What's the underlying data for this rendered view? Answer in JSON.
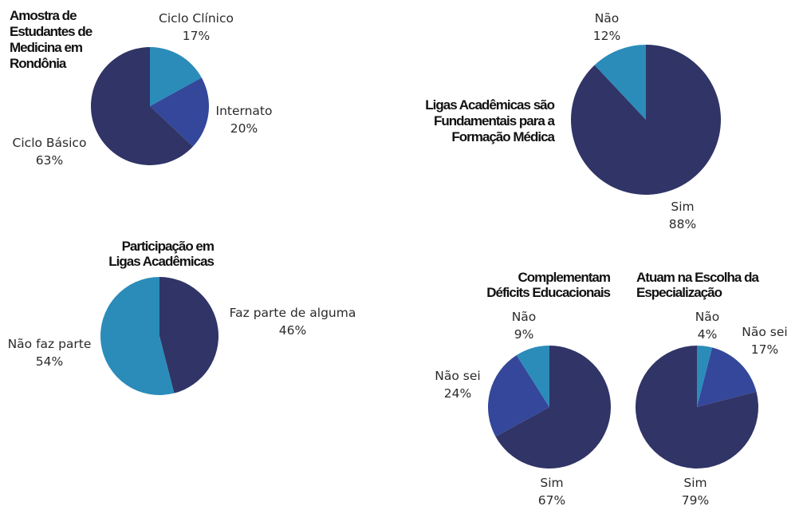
{
  "colors": {
    "dark": "#303466",
    "mid": "#34479a",
    "light": "#2b8cba"
  },
  "chart_data": [
    {
      "type": "pie",
      "title": [
        "Amostra de",
        "Estudantes de",
        "Medicina em",
        "Rondônia"
      ],
      "slices": [
        {
          "label": "Ciclo Clínico",
          "value": 17,
          "pct": "17%",
          "color": "light"
        },
        {
          "label": "Internato",
          "value": 20,
          "pct": "20%",
          "color": "mid"
        },
        {
          "label": "Ciclo Básico",
          "value": 63,
          "pct": "63%",
          "color": "dark"
        }
      ]
    },
    {
      "type": "pie",
      "title": [
        "Ligas Acadêmicas são",
        "Fundamentais para a",
        "Formação Médica"
      ],
      "slices": [
        {
          "label": "Sim",
          "value": 88,
          "pct": "88%",
          "color": "dark"
        },
        {
          "label": "Não",
          "value": 12,
          "pct": "12%",
          "color": "light"
        }
      ]
    },
    {
      "type": "pie",
      "title": [
        "Participação em",
        "Ligas Acadêmicas"
      ],
      "slices": [
        {
          "label": "Faz parte de alguma",
          "value": 46,
          "pct": "46%",
          "color": "dark"
        },
        {
          "label": "Não faz parte",
          "value": 54,
          "pct": "54%",
          "color": "light"
        }
      ]
    },
    {
      "type": "pie",
      "title": [
        "Complementam",
        "Déficits Educacionais"
      ],
      "slices": [
        {
          "label": "Sim",
          "value": 67,
          "pct": "67%",
          "color": "dark"
        },
        {
          "label": "Não sei",
          "value": 24,
          "pct": "24%",
          "color": "mid"
        },
        {
          "label": "Não",
          "value": 9,
          "pct": "9%",
          "color": "light"
        }
      ]
    },
    {
      "type": "pie",
      "title": [
        "Atuam na Escolha da",
        "Especialização"
      ],
      "slices": [
        {
          "label": "Não",
          "value": 4,
          "pct": "4%",
          "color": "light"
        },
        {
          "label": "Não sei",
          "value": 17,
          "pct": "17%",
          "color": "mid"
        },
        {
          "label": "Sim",
          "value": 79,
          "pct": "79%",
          "color": "dark"
        }
      ]
    }
  ]
}
